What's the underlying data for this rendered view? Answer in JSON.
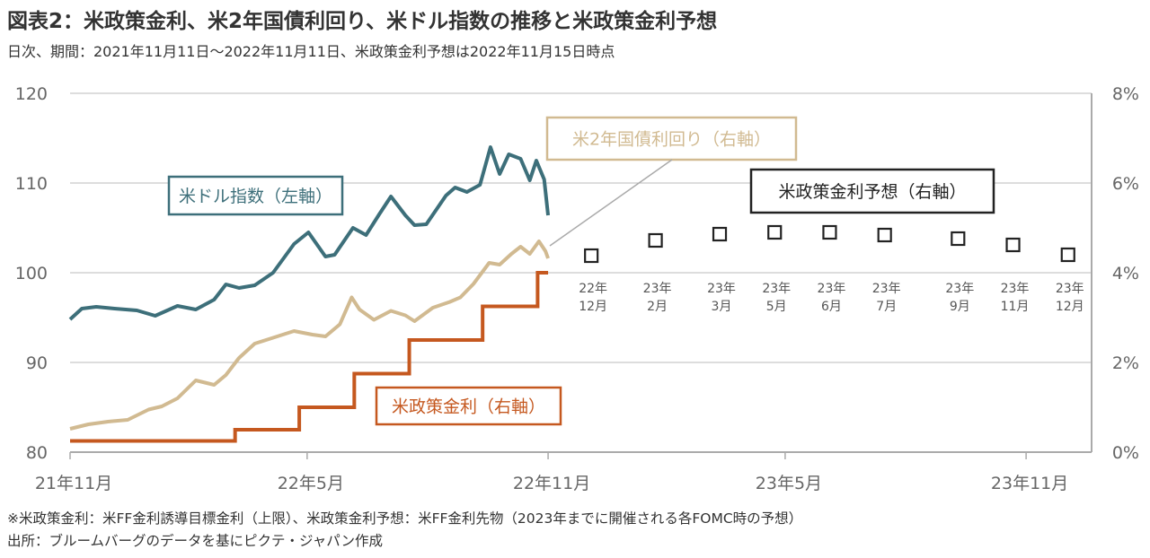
{
  "title": "図表2：米政策金利、米2年国債利回り、米ドル指数の推移と米政策金利予想",
  "subtitle": "日次、期間：2021年11月11日～2022年11月11日、米政策金利予想は2022年11月15日時点",
  "notes": [
    "※米政策金利：米FF金利誘導目標金利（上限）、米政策金利予想：米FF金利先物（2023年までに開催される各FOMC時の予想）",
    "出所：ブルームバーグのデータを基にピクテ・ジャパン作成"
  ],
  "colors": {
    "dxy": "#3d6f7a",
    "yield": "#d1ba91",
    "policy": "#c5581f",
    "forecast": "#222222",
    "grid": "#bbbbbb",
    "axis": "#aaaaaa"
  },
  "chart_data": {
    "type": "line",
    "x_ticks": [
      "21年11月",
      "22年5月",
      "22年11月",
      "23年5月",
      "23年11月"
    ],
    "xlim": [
      "2021-11-11",
      "2023-12-31"
    ],
    "y_left": {
      "ylim": [
        80,
        120
      ],
      "ticks": [
        "120",
        "110",
        "100",
        "90",
        "80"
      ]
    },
    "y_right": {
      "ylim": [
        0,
        8
      ],
      "ticks": [
        "8%",
        "6%",
        "4%",
        "2%",
        "0%"
      ]
    },
    "series": [
      {
        "name": "米ドル指数（左軸）",
        "axis": "left",
        "style": "line",
        "x": [
          "2021-11-11",
          "2021-11-20",
          "2021-12-01",
          "2021-12-15",
          "2022-01-01",
          "2022-01-15",
          "2022-02-01",
          "2022-02-15",
          "2022-03-01",
          "2022-03-10",
          "2022-03-20",
          "2022-04-01",
          "2022-04-15",
          "2022-05-01",
          "2022-05-12",
          "2022-05-25",
          "2022-06-01",
          "2022-06-15",
          "2022-06-25",
          "2022-07-05",
          "2022-07-14",
          "2022-07-25",
          "2022-08-01",
          "2022-08-10",
          "2022-08-25",
          "2022-09-01",
          "2022-09-10",
          "2022-09-20",
          "2022-09-28",
          "2022-10-05",
          "2022-10-12",
          "2022-10-21",
          "2022-10-28",
          "2022-11-02",
          "2022-11-08",
          "2022-11-11"
        ],
        "values": [
          94.8,
          96.0,
          96.2,
          96.0,
          95.8,
          95.2,
          96.3,
          95.9,
          97.0,
          98.7,
          98.3,
          98.6,
          100.0,
          103.2,
          104.5,
          101.8,
          102.0,
          105.0,
          104.2,
          106.5,
          108.5,
          106.4,
          105.3,
          105.4,
          108.6,
          109.5,
          109.0,
          109.8,
          114.0,
          111.0,
          113.2,
          112.7,
          110.3,
          112.5,
          110.4,
          106.4
        ]
      },
      {
        "name": "米2年国債利回り（右軸）",
        "axis": "right",
        "style": "line",
        "x": [
          "2021-11-11",
          "2021-11-25",
          "2021-12-10",
          "2021-12-25",
          "2022-01-10",
          "2022-01-20",
          "2022-02-01",
          "2022-02-15",
          "2022-03-01",
          "2022-03-10",
          "2022-03-20",
          "2022-04-01",
          "2022-04-15",
          "2022-05-01",
          "2022-05-15",
          "2022-05-25",
          "2022-06-05",
          "2022-06-14",
          "2022-06-20",
          "2022-07-01",
          "2022-07-14",
          "2022-07-25",
          "2022-08-01",
          "2022-08-15",
          "2022-08-28",
          "2022-09-05",
          "2022-09-15",
          "2022-09-27",
          "2022-10-05",
          "2022-10-14",
          "2022-10-21",
          "2022-10-28",
          "2022-11-04",
          "2022-11-09",
          "2022-11-11"
        ],
        "values": [
          0.52,
          0.62,
          0.68,
          0.72,
          0.95,
          1.02,
          1.2,
          1.6,
          1.5,
          1.72,
          2.1,
          2.42,
          2.55,
          2.7,
          2.62,
          2.58,
          2.85,
          3.45,
          3.18,
          2.95,
          3.15,
          3.05,
          2.92,
          3.22,
          3.35,
          3.45,
          3.75,
          4.22,
          4.18,
          4.42,
          4.58,
          4.42,
          4.7,
          4.48,
          4.32
        ]
      },
      {
        "name": "米政策金利（右軸）",
        "axis": "right",
        "style": "step",
        "x": [
          "2021-11-11",
          "2022-03-17",
          "2022-05-05",
          "2022-06-16",
          "2022-07-28",
          "2022-09-22",
          "2022-11-03",
          "2022-11-11"
        ],
        "values": [
          0.25,
          0.5,
          1.0,
          1.75,
          2.5,
          3.25,
          4.0,
          4.0
        ]
      },
      {
        "name": "米政策金利予想（右軸）",
        "axis": "right",
        "style": "markers",
        "x": [
          "2022-12-14",
          "2023-02-01",
          "2023-03-22",
          "2023-05-03",
          "2023-06-14",
          "2023-07-26",
          "2023-09-20",
          "2023-11-01",
          "2023-12-13"
        ],
        "meeting_labels": [
          "22年12月",
          "23年2月",
          "23年3月",
          "23年5月",
          "23年6月",
          "23年7月",
          "23年9月",
          "23年11月",
          "23年12月"
        ],
        "values": [
          4.38,
          4.72,
          4.86,
          4.9,
          4.9,
          4.84,
          4.76,
          4.62,
          4.4
        ]
      }
    ]
  }
}
